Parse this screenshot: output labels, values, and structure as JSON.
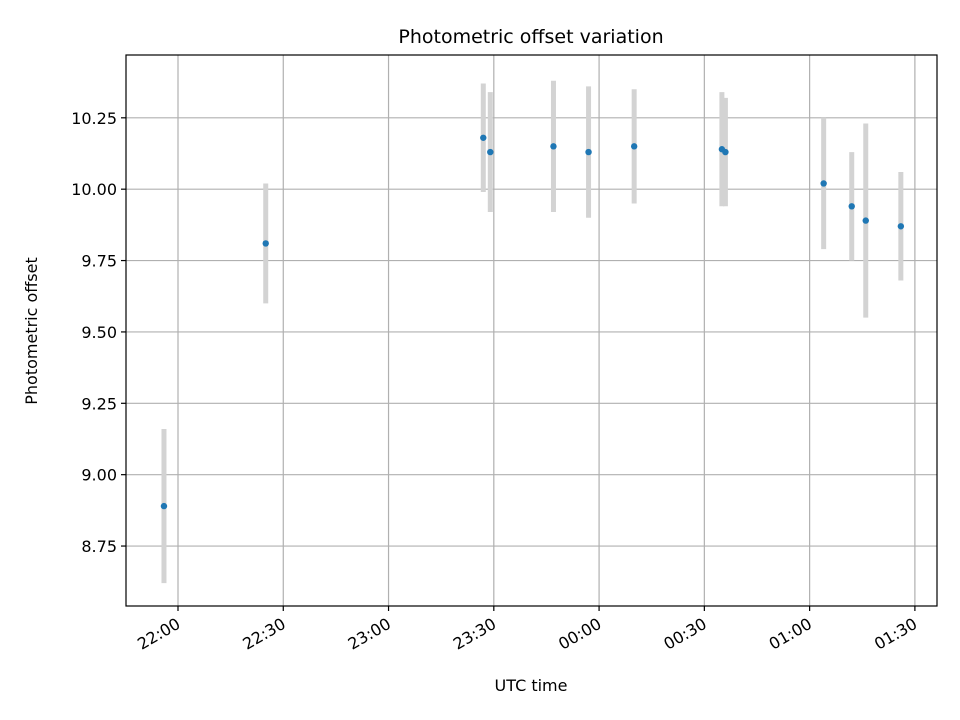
{
  "chart_data": {
    "type": "scatter",
    "title": "Photometric offset variation",
    "xlabel": "UTC time",
    "ylabel": "Photometric offset",
    "x_tick_labels": [
      "22:00",
      "22:30",
      "23:00",
      "23:30",
      "00:00",
      "00:30",
      "01:00",
      "01:30"
    ],
    "y_tick_labels": [
      "8.75",
      "9.00",
      "9.25",
      "9.50",
      "9.75",
      "10.00",
      "10.25"
    ],
    "x_axis_is_time": true,
    "ylim": [
      8.54,
      10.47
    ],
    "grid": true,
    "colors": {
      "point": "#1f77b4",
      "errorbar": "#d3d3d3",
      "grid": "#b0b0b0"
    },
    "points": [
      {
        "time": "21:56",
        "value": 8.89,
        "error": 0.27
      },
      {
        "time": "22:25",
        "value": 9.81,
        "error": 0.21
      },
      {
        "time": "23:27",
        "value": 10.18,
        "error": 0.19
      },
      {
        "time": "23:29",
        "value": 10.13,
        "error": 0.21
      },
      {
        "time": "23:47",
        "value": 10.15,
        "error": 0.23
      },
      {
        "time": "23:57",
        "value": 10.13,
        "error": 0.23
      },
      {
        "time": "00:10",
        "value": 10.15,
        "error": 0.2
      },
      {
        "time": "00:35",
        "value": 10.14,
        "error": 0.2
      },
      {
        "time": "00:36",
        "value": 10.13,
        "error": 0.19
      },
      {
        "time": "01:04",
        "value": 10.02,
        "error": 0.23
      },
      {
        "time": "01:12",
        "value": 9.94,
        "error": 0.19
      },
      {
        "time": "01:16",
        "value": 9.89,
        "error": 0.34
      },
      {
        "time": "01:26",
        "value": 9.87,
        "error": 0.19
      }
    ]
  }
}
